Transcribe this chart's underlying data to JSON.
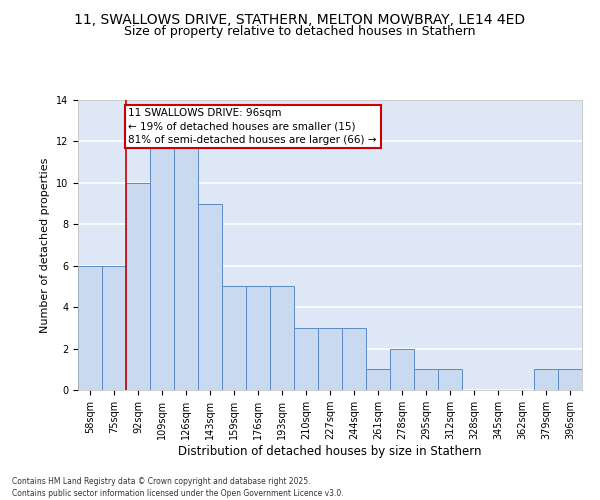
{
  "title": "11, SWALLOWS DRIVE, STATHERN, MELTON MOWBRAY, LE14 4ED",
  "subtitle": "Size of property relative to detached houses in Stathern",
  "xlabel": "Distribution of detached houses by size in Stathern",
  "ylabel": "Number of detached properties",
  "categories": [
    "58sqm",
    "75sqm",
    "92sqm",
    "109sqm",
    "126sqm",
    "143sqm",
    "159sqm",
    "176sqm",
    "193sqm",
    "210sqm",
    "227sqm",
    "244sqm",
    "261sqm",
    "278sqm",
    "295sqm",
    "312sqm",
    "328sqm",
    "345sqm",
    "362sqm",
    "379sqm",
    "396sqm"
  ],
  "values": [
    6,
    6,
    10,
    12,
    12,
    9,
    5,
    5,
    5,
    3,
    3,
    3,
    1,
    2,
    1,
    1,
    0,
    0,
    0,
    1,
    1
  ],
  "bar_color": "#c9d9ef",
  "bar_edge_color": "#5b8ac5",
  "background_color": "#dde7f5",
  "grid_color": "#ffffff",
  "annotation_text": "11 SWALLOWS DRIVE: 96sqm\n← 19% of detached houses are smaller (15)\n81% of semi-detached houses are larger (66) →",
  "annotation_box_edge": "#cc0000",
  "red_line_x": 1.5,
  "ylim": [
    0,
    14
  ],
  "yticks": [
    0,
    2,
    4,
    6,
    8,
    10,
    12,
    14
  ],
  "footer": "Contains HM Land Registry data © Crown copyright and database right 2025.\nContains public sector information licensed under the Open Government Licence v3.0.",
  "title_fontsize": 10,
  "subtitle_fontsize": 9,
  "ylabel_fontsize": 8,
  "xlabel_fontsize": 8.5,
  "tick_fontsize": 7,
  "ann_fontsize": 7.5,
  "footer_fontsize": 5.5
}
